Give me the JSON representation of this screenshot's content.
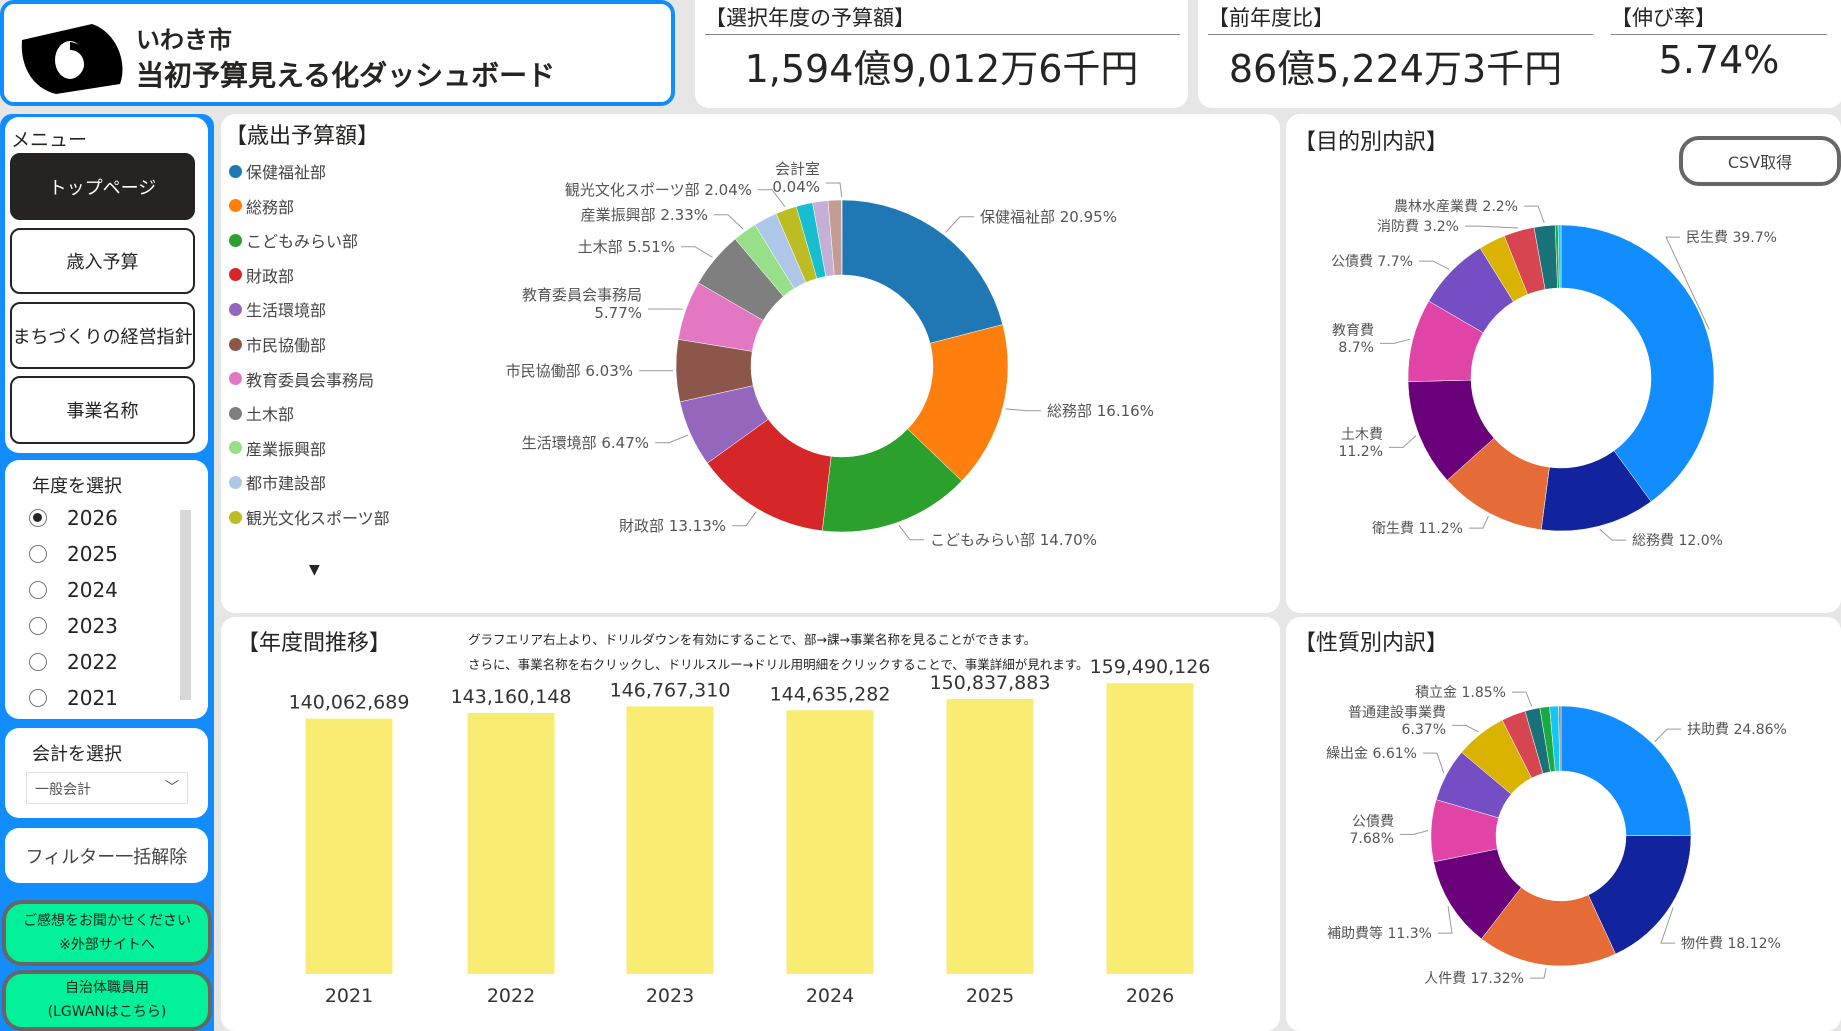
{
  "header": {
    "city": "いわき市",
    "title": "当初予算見える化ダッシュボード"
  },
  "kpis": [
    {
      "label": "【選択年度の予算額】",
      "value": "1,594億9,012万6千円"
    },
    {
      "label": "【前年度比】",
      "value": "86億5,224万3千円"
    },
    {
      "label": "【伸び率】",
      "value": "5.74%"
    }
  ],
  "sidebar": {
    "menu_label": "メニュー",
    "menu": [
      "トップページ",
      "歳入予算",
      "まちづくりの経営指針",
      "事業名称"
    ],
    "active_menu": "トップページ",
    "year_label": "年度を選択",
    "years": [
      "2026",
      "2025",
      "2024",
      "2023",
      "2022",
      "2021"
    ],
    "selected_year": "2026",
    "account_label": "会計を選択",
    "account_value": "一般会計",
    "clear_filters": "フィルター一括解除",
    "feedback": [
      "ご感想をお聞かせください",
      "※外部サイトへ"
    ],
    "lgwan": [
      "自治体職員用",
      "(LGWANはこちら)"
    ],
    "accent": "#118DFF",
    "green": "#00F19A"
  },
  "expenditure": {
    "title": "【歳出予算額】",
    "legend": [
      {
        "name": "保健福祉部",
        "color": "#1F77B4"
      },
      {
        "name": "総務部",
        "color": "#FF7F0E"
      },
      {
        "name": "こどもみらい部",
        "color": "#2CA02C"
      },
      {
        "name": "財政部",
        "color": "#D62728"
      },
      {
        "name": "生活環境部",
        "color": "#9467BD"
      },
      {
        "name": "市民協働部",
        "color": "#8C564B"
      },
      {
        "name": "教育委員会事務局",
        "color": "#E377C2"
      },
      {
        "name": "土木部",
        "color": "#7F7F7F"
      },
      {
        "name": "産業振興部",
        "color": "#98DF8A"
      },
      {
        "name": "都市建設部",
        "color": "#AEC7E8"
      },
      {
        "name": "観光文化スポーツ部",
        "color": "#BCBD22"
      }
    ]
  },
  "purpose": {
    "title": "【目的別内訳】",
    "csv_button": "CSV取得"
  },
  "nature": {
    "title": "【性質別内訳】"
  },
  "trend": {
    "title": "【年度間推移】",
    "note1": "グラフエリア右上より、ドリルダウンを有効にすることで、部→課→事業名称を見ることができます。",
    "note2": "さらに、事業名称を右クリックし、ドリルスルー→ドリル用明細をクリックすることで、事業詳細が見れます。"
  },
  "chart_data": [
    {
      "type": "pie",
      "id": "expenditure",
      "slices": [
        {
          "name": "保健福祉部",
          "label": "保健福祉部 20.95%",
          "value": 20.95,
          "color": "#1F77B4"
        },
        {
          "name": "総務部",
          "label": "総務部 16.16%",
          "value": 16.16,
          "color": "#FF7F0E"
        },
        {
          "name": "こどもみらい部",
          "label": "こどもみらい部 14.70%",
          "value": 14.7,
          "color": "#2CA02C"
        },
        {
          "name": "財政部",
          "label": "財政部 13.13%",
          "value": 13.13,
          "color": "#D62728"
        },
        {
          "name": "生活環境部",
          "label": "生活環境部 6.47%",
          "value": 6.47,
          "color": "#9467BD"
        },
        {
          "name": "市民協働部",
          "label": "市民協働部 6.03%",
          "value": 6.03,
          "color": "#8C564B"
        },
        {
          "name": "教育委員会事務局",
          "label": "教育委員会事務局 5.77%",
          "value": 5.77,
          "color": "#E377C2"
        },
        {
          "name": "土木部",
          "label": "土木部 5.51%",
          "value": 5.51,
          "color": "#7F7F7F"
        },
        {
          "name": "産業振興部",
          "label": "産業振興部 2.33%",
          "value": 2.33,
          "color": "#98DF8A"
        },
        {
          "name": "都市建設部",
          "label": "",
          "value": 2.3,
          "color": "#AEC7E8"
        },
        {
          "name": "観光文化スポーツ部",
          "label": "観光文化スポーツ部 2.04%",
          "value": 2.04,
          "color": "#BCBD22"
        },
        {
          "name": "",
          "label": "",
          "value": 1.6,
          "color": "#17BECF"
        },
        {
          "name": "",
          "label": "",
          "value": 1.5,
          "color": "#C5B0D5"
        },
        {
          "name": "",
          "label": "",
          "value": 1.3,
          "color": "#C49C94"
        },
        {
          "name": "会計室",
          "label": "会計室 0.04%",
          "value": 0.04,
          "color": "#F7B6D2"
        }
      ]
    },
    {
      "type": "pie",
      "id": "purpose",
      "slices": [
        {
          "name": "民生費",
          "label": "民生費 39.7%",
          "value": 39.7,
          "color": "#118DFF"
        },
        {
          "name": "総務費",
          "label": "総務費 12.0%",
          "value": 12.0,
          "color": "#12239E"
        },
        {
          "name": "衛生費",
          "label": "衛生費 11.2%",
          "value": 11.2,
          "color": "#E66C37"
        },
        {
          "name": "土木費",
          "label": "土木費 11.2%",
          "value": 11.2,
          "color": "#6B007B"
        },
        {
          "name": "教育費",
          "label": "教育費 8.7%",
          "value": 8.7,
          "color": "#E044A7"
        },
        {
          "name": "公債費",
          "label": "公債費 7.7%",
          "value": 7.7,
          "color": "#744EC2"
        },
        {
          "name": "",
          "label": "",
          "value": 2.8,
          "color": "#D9B300"
        },
        {
          "name": "消防費",
          "label": "消防費 3.2%",
          "value": 3.2,
          "color": "#D64550"
        },
        {
          "name": "農林水産業費",
          "label": "農林水産業費 2.2%",
          "value": 2.2,
          "color": "#197278"
        },
        {
          "name": "",
          "label": "",
          "value": 0.3,
          "color": "#1AAB40"
        },
        {
          "name": "",
          "label": "",
          "value": 0.3,
          "color": "#15C6F4"
        }
      ]
    },
    {
      "type": "pie",
      "id": "nature",
      "slices": [
        {
          "name": "扶助費",
          "label": "扶助費 24.86%",
          "value": 24.86,
          "color": "#118DFF"
        },
        {
          "name": "物件費",
          "label": "物件費 18.12%",
          "value": 18.12,
          "color": "#12239E"
        },
        {
          "name": "人件費",
          "label": "人件費 17.32%",
          "value": 17.32,
          "color": "#E66C37"
        },
        {
          "name": "補助費等",
          "label": "補助費等 11.3%",
          "value": 11.3,
          "color": "#6B007B"
        },
        {
          "name": "公債費",
          "label": "公債費 7.68%",
          "value": 7.68,
          "color": "#E044A7"
        },
        {
          "name": "繰出金",
          "label": "繰出金 6.61%",
          "value": 6.61,
          "color": "#744EC2"
        },
        {
          "name": "普通建設事業費",
          "label": "普通建設事業費 6.37%",
          "value": 6.37,
          "color": "#D9B300"
        },
        {
          "name": "",
          "label": "",
          "value": 3.0,
          "color": "#D64550"
        },
        {
          "name": "積立金",
          "label": "積立金 1.85%",
          "value": 1.85,
          "color": "#197278"
        },
        {
          "name": "",
          "label": "",
          "value": 1.2,
          "color": "#1AAB40"
        },
        {
          "name": "",
          "label": "",
          "value": 1.1,
          "color": "#15C6F4"
        },
        {
          "name": "",
          "label": "",
          "value": 0.3,
          "color": "#8E8E8E"
        }
      ]
    },
    {
      "type": "bar",
      "id": "trend",
      "categories": [
        "2021",
        "2022",
        "2023",
        "2024",
        "2025",
        "2026"
      ],
      "values": [
        140062689,
        143160148,
        146767310,
        144635282,
        150837883,
        159490126
      ],
      "data_labels": [
        "140,062,689",
        "143,160,148",
        "146,767,310",
        "144,635,282",
        "150,837,883",
        "159,490,126"
      ],
      "color": "#F9EC72",
      "ylim": [
        0,
        170000000
      ]
    }
  ]
}
